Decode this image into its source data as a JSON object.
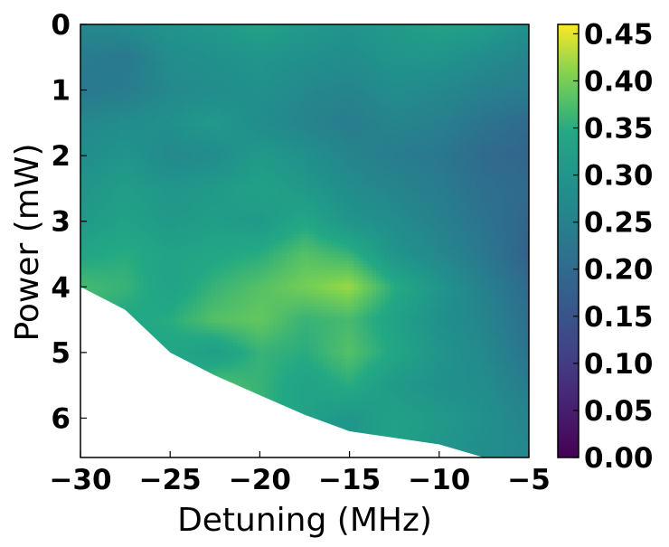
{
  "chart_data": {
    "type": "heatmap",
    "xlabel": "Detuning (MHz)",
    "ylabel": "Power (mW)",
    "xlim": [
      -30,
      -5
    ],
    "ylim": [
      0,
      6.6
    ],
    "y_inverted": true,
    "x_ticks": [
      -30,
      -25,
      -20,
      -15,
      -10,
      -5
    ],
    "x_tick_labels": [
      "−30",
      "−25",
      "−20",
      "−15",
      "−10",
      "−5"
    ],
    "y_ticks": [
      0,
      1,
      2,
      3,
      4,
      5,
      6
    ],
    "y_tick_labels": [
      "0",
      "1",
      "2",
      "3",
      "4",
      "5",
      "6"
    ],
    "colormap": "viridis",
    "colorbar": {
      "range": [
        0,
        0.46
      ],
      "ticks": [
        0.0,
        0.05,
        0.1,
        0.15,
        0.2,
        0.25,
        0.3,
        0.35,
        0.4,
        0.45
      ],
      "tick_labels": [
        "0.00",
        "0.05",
        "0.10",
        "0.15",
        "0.20",
        "0.25",
        "0.30",
        "0.35",
        "0.40",
        "0.45"
      ]
    },
    "x_grid": [
      -30,
      -27.5,
      -25,
      -22.5,
      -20,
      -17.5,
      -15,
      -12.5,
      -10,
      -7.5,
      -5
    ],
    "y_grid": [
      0,
      0.5,
      1,
      1.5,
      2,
      2.5,
      3,
      3.5,
      4,
      4.5,
      5,
      5.5,
      6,
      6.6
    ],
    "values": [
      [
        0.27,
        0.28,
        0.3,
        0.31,
        0.33,
        0.31,
        0.3,
        0.31,
        0.33,
        0.32,
        0.29
      ],
      [
        0.24,
        0.23,
        0.28,
        0.29,
        0.3,
        0.29,
        0.28,
        0.3,
        0.3,
        0.28,
        0.26
      ],
      [
        0.23,
        0.24,
        0.27,
        0.28,
        0.29,
        0.27,
        0.26,
        0.28,
        0.27,
        0.25,
        0.24
      ],
      [
        0.27,
        0.28,
        0.29,
        0.31,
        0.28,
        0.26,
        0.24,
        0.26,
        0.25,
        0.22,
        0.2
      ],
      [
        0.28,
        0.3,
        0.27,
        0.28,
        0.31,
        0.29,
        0.26,
        0.24,
        0.23,
        0.2,
        0.19
      ],
      [
        0.3,
        0.32,
        0.3,
        0.31,
        0.33,
        0.31,
        0.28,
        0.26,
        0.24,
        0.21,
        0.2
      ],
      [
        0.31,
        0.33,
        0.31,
        0.32,
        0.31,
        0.34,
        0.3,
        0.28,
        0.25,
        0.22,
        0.19
      ],
      [
        0.34,
        0.35,
        0.33,
        0.34,
        0.35,
        0.38,
        0.36,
        0.3,
        0.27,
        0.23,
        0.18
      ],
      [
        0.37,
        0.36,
        0.33,
        0.36,
        0.38,
        0.4,
        0.42,
        0.35,
        0.3,
        0.25,
        0.2
      ],
      [
        null,
        0.34,
        0.35,
        0.38,
        0.39,
        0.36,
        0.37,
        0.33,
        0.29,
        0.26,
        0.21
      ],
      [
        null,
        null,
        0.34,
        0.32,
        0.36,
        0.35,
        0.38,
        0.34,
        0.3,
        0.27,
        0.22
      ],
      [
        null,
        null,
        null,
        0.38,
        0.36,
        0.33,
        0.35,
        0.31,
        0.29,
        0.28,
        0.24
      ],
      [
        null,
        null,
        null,
        null,
        null,
        0.33,
        0.3,
        0.33,
        0.31,
        0.29,
        0.26
      ],
      [
        null,
        null,
        null,
        null,
        null,
        null,
        null,
        null,
        0.3,
        0.28,
        0.27
      ]
    ],
    "boundary": [
      [
        -30,
        4.0
      ],
      [
        -27.5,
        4.35
      ],
      [
        -25,
        5.0
      ],
      [
        -22.5,
        5.35
      ],
      [
        -20,
        5.65
      ],
      [
        -17.5,
        5.95
      ],
      [
        -15,
        6.2
      ],
      [
        -12.5,
        6.3
      ],
      [
        -10,
        6.4
      ],
      [
        -7.5,
        6.6
      ],
      [
        -5,
        6.65
      ]
    ]
  }
}
